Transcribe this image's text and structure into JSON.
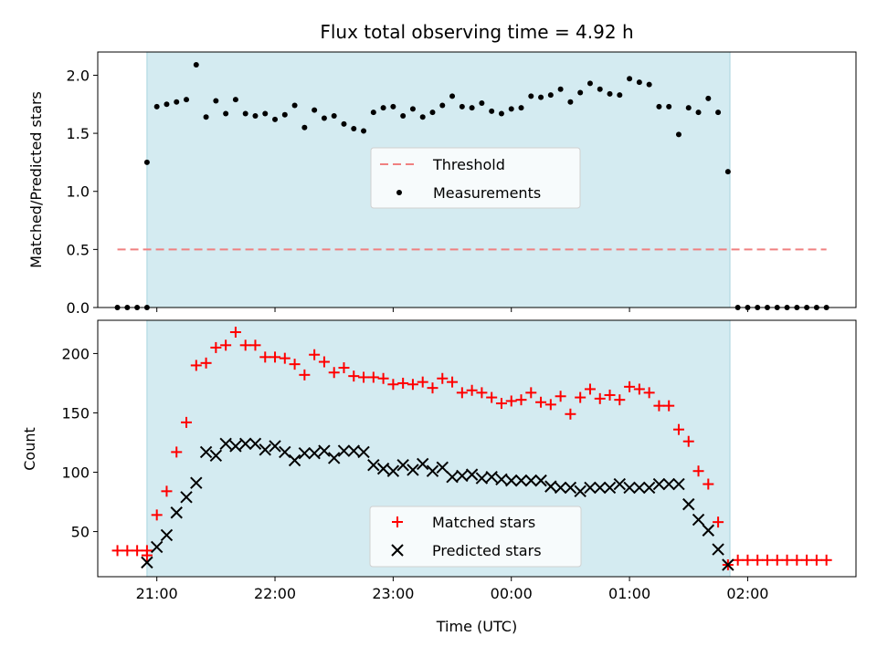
{
  "chart_data": [
    {
      "type": "scatter",
      "title": "Flux total observing time = 4.92 h",
      "xlabel": "",
      "ylabel": "Matched/Predicted stars",
      "ylim": [
        0,
        2.2
      ],
      "yticks": [
        "0.0",
        "0.5",
        "1.0",
        "1.5",
        "2.0"
      ],
      "xlim": [
        "20:30",
        "02:55"
      ],
      "observing_window": [
        "20:55",
        "01:51"
      ],
      "shade_color": "#d4ebf1",
      "legend_position": "center",
      "threshold": {
        "name": "Threshold",
        "value": 0.5,
        "x_start": "20:40",
        "x_end": "02:40",
        "color": "#f08080",
        "style": "dashed"
      },
      "series": [
        {
          "name": "Measurements",
          "color": "#000000",
          "marker": "dot",
          "x": [
            "20:40",
            "20:45",
            "20:50",
            "20:55",
            "20:55",
            "21:00",
            "21:05",
            "21:10",
            "21:15",
            "21:20",
            "21:25",
            "21:30",
            "21:35",
            "21:40",
            "21:45",
            "21:50",
            "21:55",
            "22:00",
            "22:05",
            "22:10",
            "22:15",
            "22:20",
            "22:25",
            "22:30",
            "22:35",
            "22:40",
            "22:45",
            "22:50",
            "22:55",
            "23:00",
            "23:05",
            "23:10",
            "23:15",
            "23:20",
            "23:25",
            "23:30",
            "23:35",
            "23:40",
            "23:45",
            "23:50",
            "23:55",
            "00:00",
            "00:05",
            "00:10",
            "00:15",
            "00:20",
            "00:25",
            "00:30",
            "00:35",
            "00:40",
            "00:45",
            "00:50",
            "00:55",
            "01:00",
            "01:05",
            "01:10",
            "01:15",
            "01:20",
            "01:25",
            "01:30",
            "01:35",
            "01:40",
            "01:45",
            "01:50",
            "01:55",
            "02:00",
            "02:05",
            "02:10",
            "02:15",
            "02:20",
            "02:25",
            "02:30",
            "02:35",
            "02:40"
          ],
          "y": [
            0,
            0,
            0,
            0,
            1.25,
            1.73,
            1.75,
            1.77,
            1.79,
            2.09,
            1.64,
            1.78,
            1.67,
            1.79,
            1.67,
            1.65,
            1.67,
            1.62,
            1.66,
            1.74,
            1.55,
            1.7,
            1.63,
            1.65,
            1.58,
            1.54,
            1.52,
            1.68,
            1.72,
            1.73,
            1.65,
            1.71,
            1.64,
            1.68,
            1.74,
            1.82,
            1.73,
            1.72,
            1.76,
            1.69,
            1.67,
            1.71,
            1.72,
            1.82,
            1.81,
            1.83,
            1.88,
            1.77,
            1.85,
            1.93,
            1.88,
            1.84,
            1.83,
            1.97,
            1.94,
            1.92,
            1.73,
            1.73,
            1.49,
            1.72,
            1.68,
            1.8,
            1.68,
            1.17,
            0,
            0,
            0,
            0,
            0,
            0,
            0,
            0,
            0,
            0
          ]
        }
      ]
    },
    {
      "type": "scatter",
      "title": "",
      "xlabel": "Time (UTC)",
      "ylabel": "Count",
      "ylim": [
        12,
        228
      ],
      "yticks": [
        "50",
        "100",
        "150",
        "200"
      ],
      "xticks": [
        "21:00",
        "22:00",
        "23:00",
        "00:00",
        "01:00",
        "02:00"
      ],
      "xlim": [
        "20:30",
        "02:55"
      ],
      "observing_window": [
        "20:55",
        "01:51"
      ],
      "shade_color": "#d4ebf1",
      "legend_position": "lower center",
      "series": [
        {
          "name": "Matched stars",
          "color": "#ff0000",
          "marker": "plus",
          "x": [
            "20:40",
            "20:45",
            "20:50",
            "20:55",
            "20:55",
            "21:00",
            "21:05",
            "21:10",
            "21:15",
            "21:20",
            "21:25",
            "21:30",
            "21:35",
            "21:40",
            "21:45",
            "21:50",
            "21:55",
            "22:00",
            "22:05",
            "22:10",
            "22:15",
            "22:20",
            "22:25",
            "22:30",
            "22:35",
            "22:40",
            "22:45",
            "22:50",
            "22:55",
            "23:00",
            "23:05",
            "23:10",
            "23:15",
            "23:20",
            "23:25",
            "23:30",
            "23:35",
            "23:40",
            "23:45",
            "23:50",
            "23:55",
            "00:00",
            "00:05",
            "00:10",
            "00:15",
            "00:20",
            "00:25",
            "00:30",
            "00:35",
            "00:40",
            "00:45",
            "00:50",
            "00:55",
            "01:00",
            "01:05",
            "01:10",
            "01:15",
            "01:20",
            "01:25",
            "01:30",
            "01:35",
            "01:40",
            "01:45",
            "01:50",
            "01:55",
            "02:00",
            "02:05",
            "02:10",
            "02:15",
            "02:20",
            "02:25",
            "02:30",
            "02:35",
            "02:40"
          ],
          "y": [
            34,
            34,
            34,
            34,
            30,
            64,
            84,
            117,
            142,
            190,
            192,
            205,
            207,
            218,
            207,
            207,
            197,
            197,
            196,
            191,
            182,
            199,
            193,
            184,
            188,
            181,
            180,
            180,
            179,
            174,
            175,
            174,
            176,
            171,
            179,
            176,
            167,
            169,
            167,
            163,
            158,
            160,
            161,
            167,
            159,
            157,
            164,
            149,
            163,
            170,
            162,
            165,
            161,
            172,
            170,
            167,
            156,
            156,
            136,
            126,
            101,
            90,
            58,
            22,
            26,
            26,
            26,
            26,
            26,
            26,
            26,
            26,
            26,
            26
          ]
        },
        {
          "name": "Predicted stars",
          "color": "#000000",
          "marker": "x",
          "x": [
            "20:55",
            "21:00",
            "21:05",
            "21:10",
            "21:15",
            "21:20",
            "21:25",
            "21:30",
            "21:35",
            "21:40",
            "21:45",
            "21:50",
            "21:55",
            "22:00",
            "22:05",
            "22:10",
            "22:15",
            "22:20",
            "22:25",
            "22:30",
            "22:35",
            "22:40",
            "22:45",
            "22:50",
            "22:55",
            "23:00",
            "23:05",
            "23:10",
            "23:15",
            "23:20",
            "23:25",
            "23:30",
            "23:35",
            "23:40",
            "23:45",
            "23:50",
            "23:55",
            "00:00",
            "00:05",
            "00:10",
            "00:15",
            "00:20",
            "00:25",
            "00:30",
            "00:35",
            "00:40",
            "00:45",
            "00:50",
            "00:55",
            "01:00",
            "01:05",
            "01:10",
            "01:15",
            "01:20",
            "01:25",
            "01:30",
            "01:35",
            "01:40",
            "01:45",
            "01:50"
          ],
          "y": [
            24,
            37,
            47,
            66,
            79,
            91,
            117,
            114,
            124,
            122,
            124,
            124,
            119,
            122,
            117,
            110,
            116,
            116,
            118,
            112,
            118,
            118,
            117,
            106,
            103,
            101,
            106,
            102,
            107,
            101,
            104,
            96,
            97,
            98,
            95,
            96,
            94,
            93,
            93,
            93,
            93,
            88,
            87,
            87,
            84,
            87,
            87,
            87,
            90,
            87,
            87,
            87,
            90,
            90,
            90,
            73,
            60,
            51,
            35,
            22
          ]
        }
      ]
    }
  ]
}
